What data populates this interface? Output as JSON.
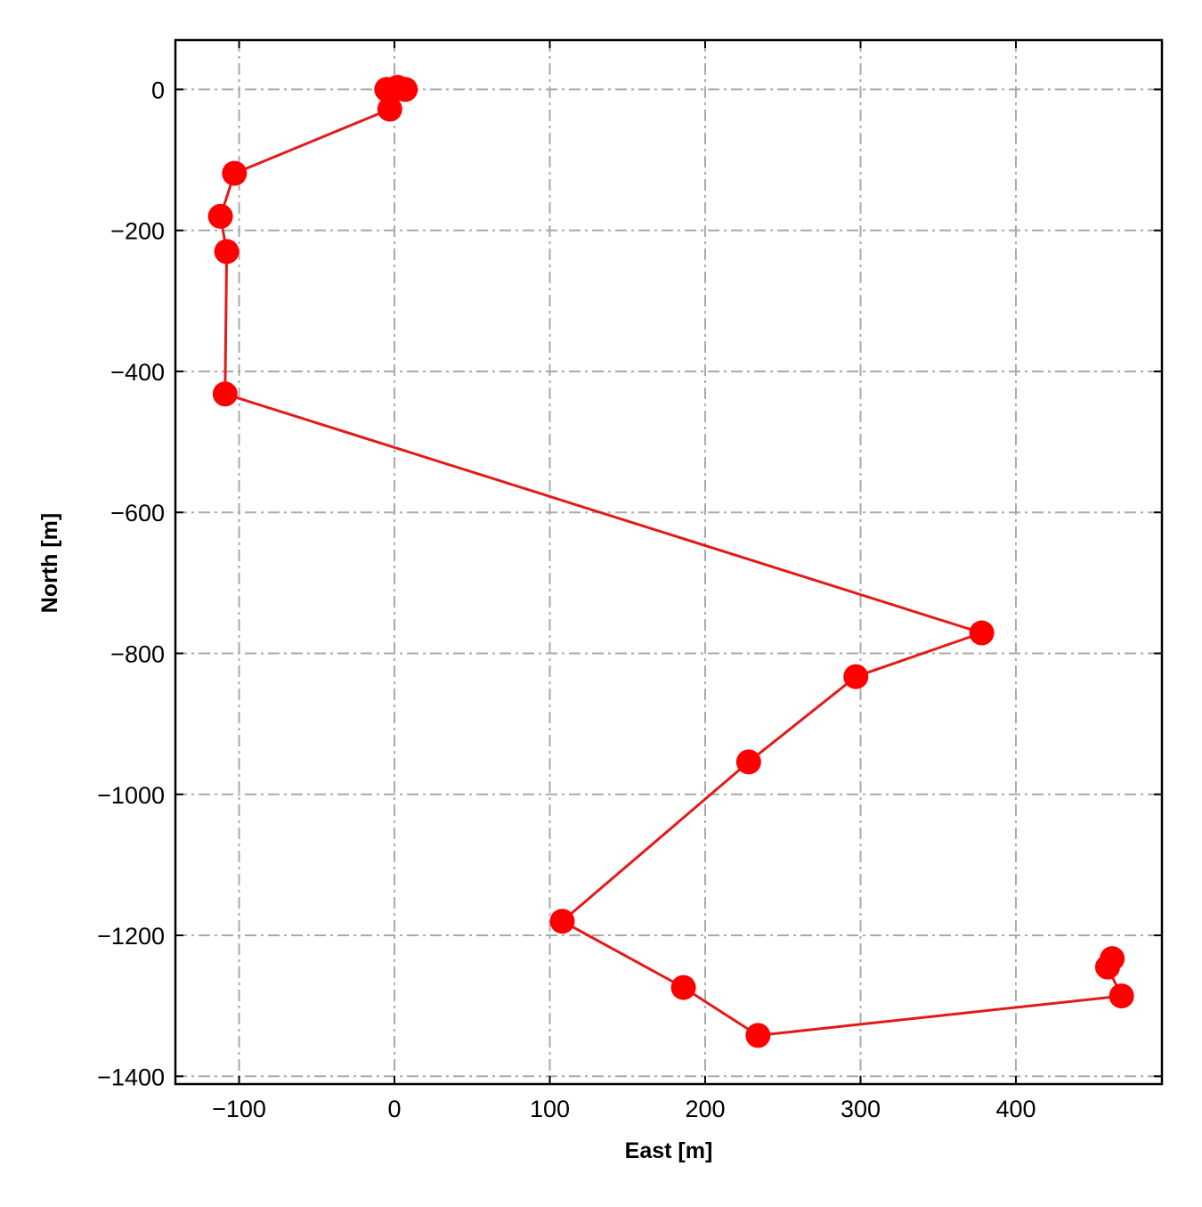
{
  "chart_data": {
    "type": "line",
    "title": "",
    "xlabel": "East [m]",
    "ylabel": "North [m]",
    "xlim": [
      -141,
      494
    ],
    "ylim": [
      -1411,
      70
    ],
    "grid": true,
    "x_ticks": [
      -100,
      0,
      100,
      200,
      300,
      400
    ],
    "y_ticks": [
      0,
      -200,
      -400,
      -600,
      -800,
      -1000,
      -1200,
      -1400
    ],
    "x_tick_labels": [
      "−100",
      "0",
      "100",
      "200",
      "300",
      "400"
    ],
    "y_tick_labels": [
      "0",
      "−200",
      "−400",
      "−600",
      "−800",
      "−1000",
      "−1200",
      "−1400"
    ],
    "series": [
      {
        "color": "#ff0000",
        "line_color": "#e41a1a",
        "marker": "circle",
        "points": [
          {
            "x": 0,
            "y": 0
          },
          {
            "x": -5,
            "y": 0
          },
          {
            "x": 2,
            "y": 3
          },
          {
            "x": 7,
            "y": 0
          },
          {
            "x": -3,
            "y": -28
          },
          {
            "x": -103,
            "y": -119
          },
          {
            "x": -112,
            "y": -180
          },
          {
            "x": -108,
            "y": -230
          },
          {
            "x": -109,
            "y": -432
          },
          {
            "x": 378,
            "y": -771
          },
          {
            "x": 297,
            "y": -833
          },
          {
            "x": 228,
            "y": -954
          },
          {
            "x": 108,
            "y": -1180
          },
          {
            "x": 186,
            "y": -1274
          },
          {
            "x": 234,
            "y": -1342
          },
          {
            "x": 468,
            "y": -1286
          },
          {
            "x": 459,
            "y": -1245
          },
          {
            "x": 462,
            "y": -1233
          }
        ]
      }
    ]
  }
}
